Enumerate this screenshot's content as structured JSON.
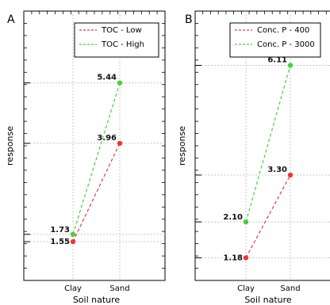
{
  "colors": {
    "low": "#e8383a",
    "high": "#3ed43e",
    "grid": "#c8c8c8",
    "frame": "#000000"
  },
  "chart_data": [
    {
      "type": "line",
      "panel_label": "A",
      "title": "",
      "xlabel": "Soil nature",
      "ylabel": "response",
      "categories": [
        "Clay",
        "Sand"
      ],
      "ylim": [
        0.6,
        7.2
      ],
      "grid": true,
      "legend_position": "top-right",
      "series": [
        {
          "name": "TOC - Low",
          "values": [
            1.55,
            3.96
          ],
          "color": "#e8383a",
          "style": "dashed"
        },
        {
          "name": "TOC - High",
          "values": [
            1.73,
            5.44
          ],
          "color": "#3ed43e",
          "style": "dashed"
        }
      ],
      "data_labels": [
        "1.55",
        "3.96",
        "1.73",
        "5.44"
      ]
    },
    {
      "type": "line",
      "panel_label": "B",
      "title": "",
      "xlabel": "Soil nature",
      "ylabel": "response",
      "categories": [
        "Clay",
        "Sand"
      ],
      "ylim": [
        0.6,
        7.5
      ],
      "grid": true,
      "legend_position": "top-right",
      "series": [
        {
          "name": "Conc. P - 400",
          "values": [
            1.18,
            3.3
          ],
          "color": "#e8383a",
          "style": "dashed"
        },
        {
          "name": "Conc. P - 3000",
          "values": [
            2.1,
            6.11
          ],
          "color": "#3ed43e",
          "style": "dashed"
        }
      ],
      "data_labels": [
        "1.18",
        "3.30",
        "2.10",
        "6.11"
      ]
    }
  ]
}
